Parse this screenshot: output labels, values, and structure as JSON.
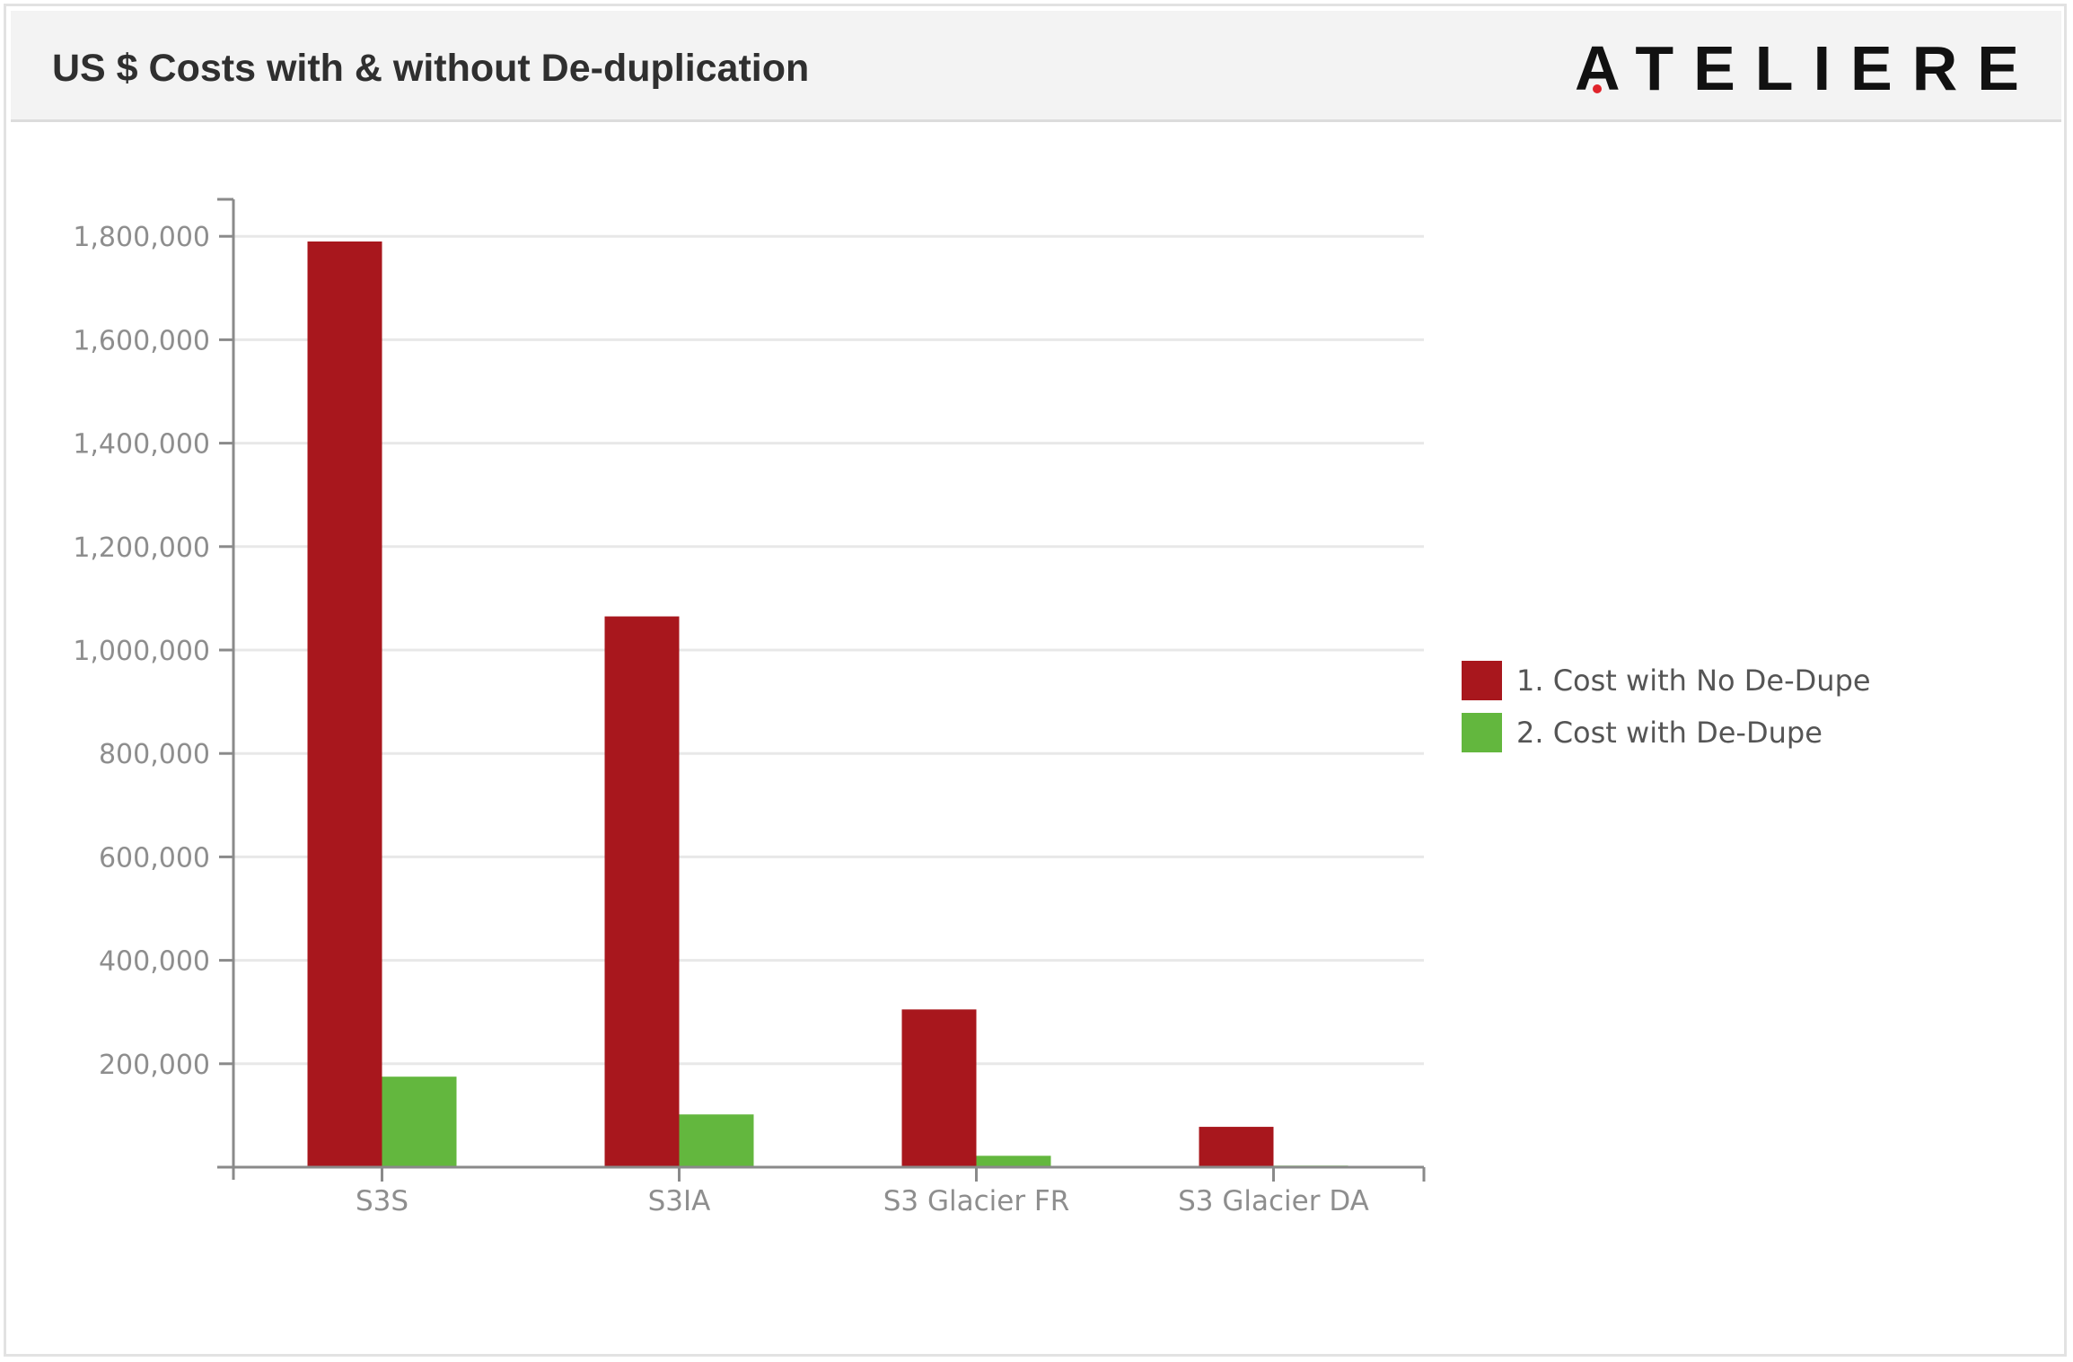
{
  "header": {
    "title": "US $ Costs with & without De-duplication",
    "logo_text": "ATELIERE"
  },
  "colors": {
    "no_dedupe": "#a8171d",
    "dedupe": "#63b73e",
    "axis": "#8a8a8a",
    "grid": "#e8e8e8",
    "tick_text": "#8e8e8e"
  },
  "legend": {
    "items": [
      {
        "label": "1. Cost with No De-Dupe",
        "color": "#a8171d"
      },
      {
        "label": "2. Cost with De-Dupe",
        "color": "#63b73e"
      }
    ]
  },
  "chart_data": {
    "type": "bar",
    "title": "US $ Costs with & without De-duplication",
    "xlabel": "",
    "ylabel": "",
    "categories": [
      "S3S",
      "S3IA",
      "S3 Glacier FR",
      "S3 Glacier DA"
    ],
    "series": [
      {
        "name": "1. Cost with No De-Dupe",
        "values": [
          1790000,
          1065000,
          305000,
          78000
        ]
      },
      {
        "name": "2. Cost with De-Dupe",
        "values": [
          175000,
          102000,
          22000,
          3000
        ]
      }
    ],
    "ylim": [
      0,
      1880000
    ],
    "yticks": [
      200000,
      400000,
      600000,
      800000,
      1000000,
      1200000,
      1400000,
      1600000,
      1800000
    ],
    "ytick_labels": [
      "200,000",
      "400,000",
      "600,000",
      "800,000",
      "1,000,000",
      "1,200,000",
      "1,400,000",
      "1,600,000",
      "1,800,000"
    ],
    "grid": true,
    "legend_position": "right"
  }
}
